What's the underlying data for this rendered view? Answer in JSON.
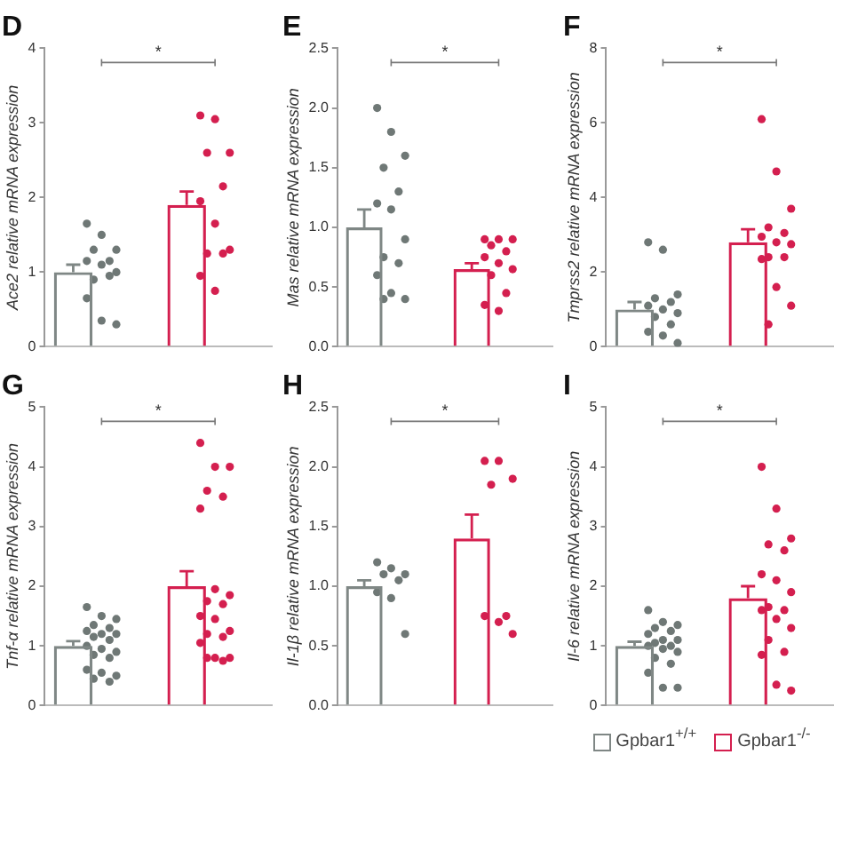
{
  "chart_data": [
    {
      "type": "bar",
      "title": "D",
      "ylabel": "Ace2 relative mRNA expression",
      "categories": [
        null,
        null
      ],
      "ylim": [
        0,
        4
      ],
      "yticks": [
        0,
        1,
        2,
        3,
        4
      ],
      "grid": false,
      "tick_labels": "y",
      "marker": "circle",
      "annotations": [
        "*"
      ],
      "series": [
        {
          "color": "#7f8785",
          "values": [
            1.0,
            null
          ],
          "errors": [
            [
              1.0,
              1.1
            ],
            null
          ]
        },
        {
          "color": "#d41f4f",
          "values": [
            null,
            1.9
          ],
          "errors": [
            null,
            [
              1.9,
              2.08
            ]
          ]
        },
        {
          "type": "scatter",
          "colors": [
            "#6f7876",
            "#d41f4f"
          ],
          "values": [
            1.65,
            3.1
          ]
        },
        {
          "type": "scatter",
          "colors": [
            "#6f7876",
            "#d41f4f"
          ],
          "values": [
            1.5,
            3.05
          ]
        },
        {
          "type": "scatter",
          "colors": [
            "#6f7876",
            "#d41f4f"
          ],
          "values": [
            1.3,
            2.6
          ]
        },
        {
          "type": "scatter",
          "colors": [
            "#6f7876",
            "#d41f4f"
          ],
          "values": [
            1.3,
            2.6
          ]
        },
        {
          "type": "scatter",
          "colors": [
            "#6f7876",
            "#d41f4f"
          ],
          "values": [
            1.15,
            2.15
          ]
        },
        {
          "type": "scatter",
          "colors": [
            "#6f7876",
            "#d41f4f"
          ],
          "values": [
            1.15,
            1.95
          ]
        },
        {
          "type": "scatter",
          "colors": [
            "#6f7876",
            "#d41f4f"
          ],
          "values": [
            1.1,
            1.65
          ]
        },
        {
          "type": "scatter",
          "colors": [
            "#6f7876",
            "#d41f4f"
          ],
          "values": [
            1.0,
            1.3
          ]
        },
        {
          "type": "scatter",
          "colors": [
            "#6f7876",
            "#d41f4f"
          ],
          "values": [
            0.9,
            1.25
          ]
        },
        {
          "type": "scatter",
          "colors": [
            "#6f7876",
            "#d41f4f"
          ],
          "values": [
            0.95,
            1.25
          ]
        },
        {
          "type": "scatter",
          "colors": [
            "#6f7876",
            "#d41f4f"
          ],
          "values": [
            0.65,
            0.95
          ]
        },
        {
          "type": "scatter",
          "colors": [
            "#6f7876",
            "#d41f4f"
          ],
          "values": [
            0.35,
            0.75
          ]
        },
        {
          "type": "scatter",
          "colors": [
            "#6f7876",
            "#d41f4f"
          ],
          "values": [
            0.3,
            null
          ]
        }
      ]
    },
    {
      "type": "bar",
      "title": "E",
      "ylabel": "Mas relative mRNA expression",
      "categories": [
        null,
        null
      ],
      "ylim": [
        0,
        2.5
      ],
      "yticks": [
        {
          "value": 0,
          "label": "0.0"
        },
        0.5,
        {
          "value": 1,
          "label": "1.0"
        },
        1.5,
        {
          "value": 2,
          "label": "2.0"
        },
        2.5
      ],
      "grid": false,
      "tick_labels": "y",
      "marker": "circle",
      "annotations": [
        "*"
      ],
      "series": [
        {
          "color": "#7f8785",
          "values": [
            1.0,
            null
          ],
          "errors": [
            [
              1.0,
              1.15
            ],
            null
          ]
        },
        {
          "color": "#d41f4f",
          "values": [
            null,
            0.65
          ],
          "errors": [
            null,
            [
              0.65,
              0.7
            ]
          ]
        },
        {
          "type": "scatter",
          "colors": [
            "#6f7876",
            "#d41f4f"
          ],
          "values": [
            2.0,
            0.9
          ]
        },
        {
          "type": "scatter",
          "colors": [
            "#6f7876",
            "#d41f4f"
          ],
          "values": [
            1.8,
            0.9
          ]
        },
        {
          "type": "scatter",
          "colors": [
            "#6f7876",
            "#d41f4f"
          ],
          "values": [
            1.6,
            0.9
          ]
        },
        {
          "type": "scatter",
          "colors": [
            "#6f7876",
            "#d41f4f"
          ],
          "values": [
            1.5,
            0.85
          ]
        },
        {
          "type": "scatter",
          "colors": [
            "#6f7876",
            "#d41f4f"
          ],
          "values": [
            1.3,
            0.8
          ]
        },
        {
          "type": "scatter",
          "colors": [
            "#6f7876",
            "#d41f4f"
          ],
          "values": [
            1.2,
            0.75
          ]
        },
        {
          "type": "scatter",
          "colors": [
            "#6f7876",
            "#d41f4f"
          ],
          "values": [
            1.15,
            0.7
          ]
        },
        {
          "type": "scatter",
          "colors": [
            "#6f7876",
            "#d41f4f"
          ],
          "values": [
            0.9,
            0.65
          ]
        },
        {
          "type": "scatter",
          "colors": [
            "#6f7876",
            "#d41f4f"
          ],
          "values": [
            0.75,
            0.6
          ]
        },
        {
          "type": "scatter",
          "colors": [
            "#6f7876",
            "#d41f4f"
          ],
          "values": [
            0.7,
            0.45
          ]
        },
        {
          "type": "scatter",
          "colors": [
            "#6f7876",
            "#d41f4f"
          ],
          "values": [
            0.6,
            0.35
          ]
        },
        {
          "type": "scatter",
          "colors": [
            "#6f7876",
            "#d41f4f"
          ],
          "values": [
            0.45,
            0.3
          ]
        },
        {
          "type": "scatter",
          "colors": [
            "#6f7876",
            "#d41f4f"
          ],
          "values": [
            0.4,
            null
          ]
        },
        {
          "type": "scatter",
          "colors": [
            "#6f7876",
            "#d41f4f"
          ],
          "values": [
            0.4,
            null
          ]
        }
      ]
    },
    {
      "type": "bar",
      "title": "F",
      "ylabel": "Tmprss2 relative mRNA expression",
      "categories": [
        null,
        null
      ],
      "ylim": [
        0,
        8
      ],
      "yticks": [
        0,
        2,
        4,
        6,
        8
      ],
      "grid": false,
      "tick_labels": "y",
      "marker": "circle",
      "annotations": [
        "*"
      ],
      "series": [
        {
          "color": "#7f8785",
          "values": [
            1.0,
            null
          ],
          "errors": [
            [
              1.0,
              1.2
            ],
            null
          ]
        },
        {
          "color": "#d41f4f",
          "values": [
            null,
            2.8
          ],
          "errors": [
            null,
            [
              2.8,
              3.15
            ]
          ]
        },
        {
          "type": "scatter",
          "colors": [
            "#6f7876",
            "#d41f4f"
          ],
          "values": [
            2.8,
            6.1
          ]
        },
        {
          "type": "scatter",
          "colors": [
            "#6f7876",
            "#d41f4f"
          ],
          "values": [
            2.6,
            4.7
          ]
        },
        {
          "type": "scatter",
          "colors": [
            "#6f7876",
            "#d41f4f"
          ],
          "values": [
            1.4,
            3.7
          ]
        },
        {
          "type": "scatter",
          "colors": [
            "#6f7876",
            "#d41f4f"
          ],
          "values": [
            1.3,
            3.2
          ]
        },
        {
          "type": "scatter",
          "colors": [
            "#6f7876",
            "#d41f4f"
          ],
          "values": [
            1.2,
            3.05
          ]
        },
        {
          "type": "scatter",
          "colors": [
            "#6f7876",
            "#d41f4f"
          ],
          "values": [
            1.1,
            2.95
          ]
        },
        {
          "type": "scatter",
          "colors": [
            "#6f7876",
            "#d41f4f"
          ],
          "values": [
            1.0,
            2.8
          ]
        },
        {
          "type": "scatter",
          "colors": [
            "#6f7876",
            "#d41f4f"
          ],
          "values": [
            0.9,
            2.75
          ]
        },
        {
          "type": "scatter",
          "colors": [
            "#6f7876",
            "#d41f4f"
          ],
          "values": [
            0.8,
            2.4
          ]
        },
        {
          "type": "scatter",
          "colors": [
            "#6f7876",
            "#d41f4f"
          ],
          "values": [
            0.6,
            2.4
          ]
        },
        {
          "type": "scatter",
          "colors": [
            "#6f7876",
            "#d41f4f"
          ],
          "values": [
            0.4,
            2.35
          ]
        },
        {
          "type": "scatter",
          "colors": [
            "#6f7876",
            "#d41f4f"
          ],
          "values": [
            0.3,
            1.6
          ]
        },
        {
          "type": "scatter",
          "colors": [
            "#6f7876",
            "#d41f4f"
          ],
          "values": [
            0.1,
            1.1
          ]
        },
        {
          "type": "scatter",
          "colors": [
            "#6f7876",
            "#d41f4f"
          ],
          "values": [
            null,
            0.6
          ]
        }
      ]
    },
    {
      "type": "bar",
      "title": "G",
      "ylabel": "Tnf-α relative mRNA expression",
      "categories": [
        null,
        null
      ],
      "ylim": [
        0,
        5
      ],
      "yticks": [
        0,
        1,
        2,
        3,
        4,
        5
      ],
      "grid": false,
      "tick_labels": "y",
      "marker": "circle",
      "annotations": [
        "*"
      ],
      "series": [
        {
          "color": "#7f8785",
          "values": [
            1.0,
            null
          ],
          "errors": [
            [
              1.0,
              1.08
            ],
            null
          ]
        },
        {
          "color": "#d41f4f",
          "values": [
            null,
            2.0
          ],
          "errors": [
            null,
            [
              2.0,
              2.25
            ]
          ]
        },
        {
          "type": "scatter",
          "colors": [
            "#6f7876",
            "#d41f4f"
          ],
          "values": [
            1.65,
            4.4
          ]
        },
        {
          "type": "scatter",
          "colors": [
            "#6f7876",
            "#d41f4f"
          ],
          "values": [
            1.5,
            4.0
          ]
        },
        {
          "type": "scatter",
          "colors": [
            "#6f7876",
            "#d41f4f"
          ],
          "values": [
            1.45,
            4.0
          ]
        },
        {
          "type": "scatter",
          "colors": [
            "#6f7876",
            "#d41f4f"
          ],
          "values": [
            1.35,
            3.6
          ]
        },
        {
          "type": "scatter",
          "colors": [
            "#6f7876",
            "#d41f4f"
          ],
          "values": [
            1.3,
            3.5
          ]
        },
        {
          "type": "scatter",
          "colors": [
            "#6f7876",
            "#d41f4f"
          ],
          "values": [
            1.25,
            3.3
          ]
        },
        {
          "type": "scatter",
          "colors": [
            "#6f7876",
            "#d41f4f"
          ],
          "values": [
            1.2,
            1.95
          ]
        },
        {
          "type": "scatter",
          "colors": [
            "#6f7876",
            "#d41f4f"
          ],
          "values": [
            1.2,
            1.85
          ]
        },
        {
          "type": "scatter",
          "colors": [
            "#6f7876",
            "#d41f4f"
          ],
          "values": [
            1.15,
            1.75
          ]
        },
        {
          "type": "scatter",
          "colors": [
            "#6f7876",
            "#d41f4f"
          ],
          "values": [
            1.1,
            1.7
          ]
        },
        {
          "type": "scatter",
          "colors": [
            "#6f7876",
            "#d41f4f"
          ],
          "values": [
            1.0,
            1.5
          ]
        },
        {
          "type": "scatter",
          "colors": [
            "#6f7876",
            "#d41f4f"
          ],
          "values": [
            0.95,
            1.45
          ]
        },
        {
          "type": "scatter",
          "colors": [
            "#6f7876",
            "#d41f4f"
          ],
          "values": [
            0.9,
            1.25
          ]
        },
        {
          "type": "scatter",
          "colors": [
            "#6f7876",
            "#d41f4f"
          ],
          "values": [
            0.85,
            1.2
          ]
        },
        {
          "type": "scatter",
          "colors": [
            "#6f7876",
            "#d41f4f"
          ],
          "values": [
            0.8,
            1.15
          ]
        },
        {
          "type": "scatter",
          "colors": [
            "#6f7876",
            "#d41f4f"
          ],
          "values": [
            0.6,
            1.05
          ]
        },
        {
          "type": "scatter",
          "colors": [
            "#6f7876",
            "#d41f4f"
          ],
          "values": [
            0.55,
            0.8
          ]
        },
        {
          "type": "scatter",
          "colors": [
            "#6f7876",
            "#d41f4f"
          ],
          "values": [
            0.5,
            0.8
          ]
        },
        {
          "type": "scatter",
          "colors": [
            "#6f7876",
            "#d41f4f"
          ],
          "values": [
            0.45,
            0.8
          ]
        },
        {
          "type": "scatter",
          "colors": [
            "#6f7876",
            "#d41f4f"
          ],
          "values": [
            0.4,
            0.75
          ]
        }
      ]
    },
    {
      "type": "bar",
      "title": "H",
      "ylabel": "Il-1β relative mRNA expression",
      "categories": [
        null,
        null
      ],
      "ylim": [
        0,
        2.5
      ],
      "yticks": [
        {
          "value": 0,
          "label": "0.0"
        },
        0.5,
        {
          "value": 1,
          "label": "1.0"
        },
        1.5,
        {
          "value": 2,
          "label": "2.0"
        },
        2.5
      ],
      "grid": false,
      "tick_labels": "y",
      "marker": "circle",
      "annotations": [
        "*"
      ],
      "series": [
        {
          "color": "#7f8785",
          "values": [
            1.0,
            null
          ],
          "errors": [
            [
              1.0,
              1.05
            ],
            null
          ]
        },
        {
          "color": "#d41f4f",
          "values": [
            null,
            1.4
          ],
          "errors": [
            null,
            [
              1.4,
              1.6
            ]
          ]
        },
        {
          "type": "scatter",
          "colors": [
            "#6f7876",
            "#d41f4f"
          ],
          "values": [
            1.2,
            2.05
          ]
        },
        {
          "type": "scatter",
          "colors": [
            "#6f7876",
            "#d41f4f"
          ],
          "values": [
            1.15,
            2.05
          ]
        },
        {
          "type": "scatter",
          "colors": [
            "#6f7876",
            "#d41f4f"
          ],
          "values": [
            1.1,
            1.9
          ]
        },
        {
          "type": "scatter",
          "colors": [
            "#6f7876",
            "#d41f4f"
          ],
          "values": [
            1.1,
            1.85
          ]
        },
        {
          "type": "scatter",
          "colors": [
            "#6f7876",
            "#d41f4f"
          ],
          "values": [
            1.05,
            0.75
          ]
        },
        {
          "type": "scatter",
          "colors": [
            "#6f7876",
            "#d41f4f"
          ],
          "values": [
            0.95,
            0.75
          ]
        },
        {
          "type": "scatter",
          "colors": [
            "#6f7876",
            "#d41f4f"
          ],
          "values": [
            0.9,
            0.7
          ]
        },
        {
          "type": "scatter",
          "colors": [
            "#6f7876",
            "#d41f4f"
          ],
          "values": [
            0.6,
            0.6
          ]
        }
      ]
    },
    {
      "type": "bar",
      "title": "I",
      "ylabel": "Il-6 relative mRNA expression",
      "categories": [
        null,
        null
      ],
      "ylim": [
        0,
        5
      ],
      "yticks": [
        0,
        1,
        2,
        3,
        4,
        5
      ],
      "grid": false,
      "tick_labels": "y",
      "marker": "circle",
      "annotations": [
        "*"
      ],
      "legend": "bottom",
      "series": [
        {
          "name": "Gpbar1$^{+/+}$",
          "color": "#7f8785",
          "values": [
            1.0,
            null
          ],
          "errors": [
            [
              1.0,
              1.07
            ],
            null
          ]
        },
        {
          "name": "Gpbar1$^{-/-}$",
          "color": "#d41f4f",
          "values": [
            null,
            1.8
          ],
          "errors": [
            null,
            [
              1.8,
              2.0
            ]
          ]
        },
        {
          "type": "scatter",
          "colors": [
            "#6f7876",
            "#d41f4f"
          ],
          "values": [
            1.6,
            4.0
          ]
        },
        {
          "type": "scatter",
          "colors": [
            "#6f7876",
            "#d41f4f"
          ],
          "values": [
            1.4,
            3.3
          ]
        },
        {
          "type": "scatter",
          "colors": [
            "#6f7876",
            "#d41f4f"
          ],
          "values": [
            1.35,
            2.8
          ]
        },
        {
          "type": "scatter",
          "colors": [
            "#6f7876",
            "#d41f4f"
          ],
          "values": [
            1.3,
            2.7
          ]
        },
        {
          "type": "scatter",
          "colors": [
            "#6f7876",
            "#d41f4f"
          ],
          "values": [
            1.25,
            2.6
          ]
        },
        {
          "type": "scatter",
          "colors": [
            "#6f7876",
            "#d41f4f"
          ],
          "values": [
            1.2,
            2.2
          ]
        },
        {
          "type": "scatter",
          "colors": [
            "#6f7876",
            "#d41f4f"
          ],
          "values": [
            1.1,
            2.1
          ]
        },
        {
          "type": "scatter",
          "colors": [
            "#6f7876",
            "#d41f4f"
          ],
          "values": [
            1.1,
            1.9
          ]
        },
        {
          "type": "scatter",
          "colors": [
            "#6f7876",
            "#d41f4f"
          ],
          "values": [
            1.05,
            1.65
          ]
        },
        {
          "type": "scatter",
          "colors": [
            "#6f7876",
            "#d41f4f"
          ],
          "values": [
            1.0,
            1.6
          ]
        },
        {
          "type": "scatter",
          "colors": [
            "#6f7876",
            "#d41f4f"
          ],
          "values": [
            1.0,
            1.6
          ]
        },
        {
          "type": "scatter",
          "colors": [
            "#6f7876",
            "#d41f4f"
          ],
          "values": [
            0.95,
            1.45
          ]
        },
        {
          "type": "scatter",
          "colors": [
            "#6f7876",
            "#d41f4f"
          ],
          "values": [
            0.9,
            1.3
          ]
        },
        {
          "type": "scatter",
          "colors": [
            "#6f7876",
            "#d41f4f"
          ],
          "values": [
            0.8,
            1.1
          ]
        },
        {
          "type": "scatter",
          "colors": [
            "#6f7876",
            "#d41f4f"
          ],
          "values": [
            0.7,
            0.9
          ]
        },
        {
          "type": "scatter",
          "colors": [
            "#6f7876",
            "#d41f4f"
          ],
          "values": [
            0.55,
            0.85
          ]
        },
        {
          "type": "scatter",
          "colors": [
            "#6f7876",
            "#d41f4f"
          ],
          "values": [
            0.3,
            0.35
          ]
        },
        {
          "type": "scatter",
          "colors": [
            "#6f7876",
            "#d41f4f"
          ],
          "values": [
            0.3,
            0.25
          ]
        }
      ]
    }
  ]
}
